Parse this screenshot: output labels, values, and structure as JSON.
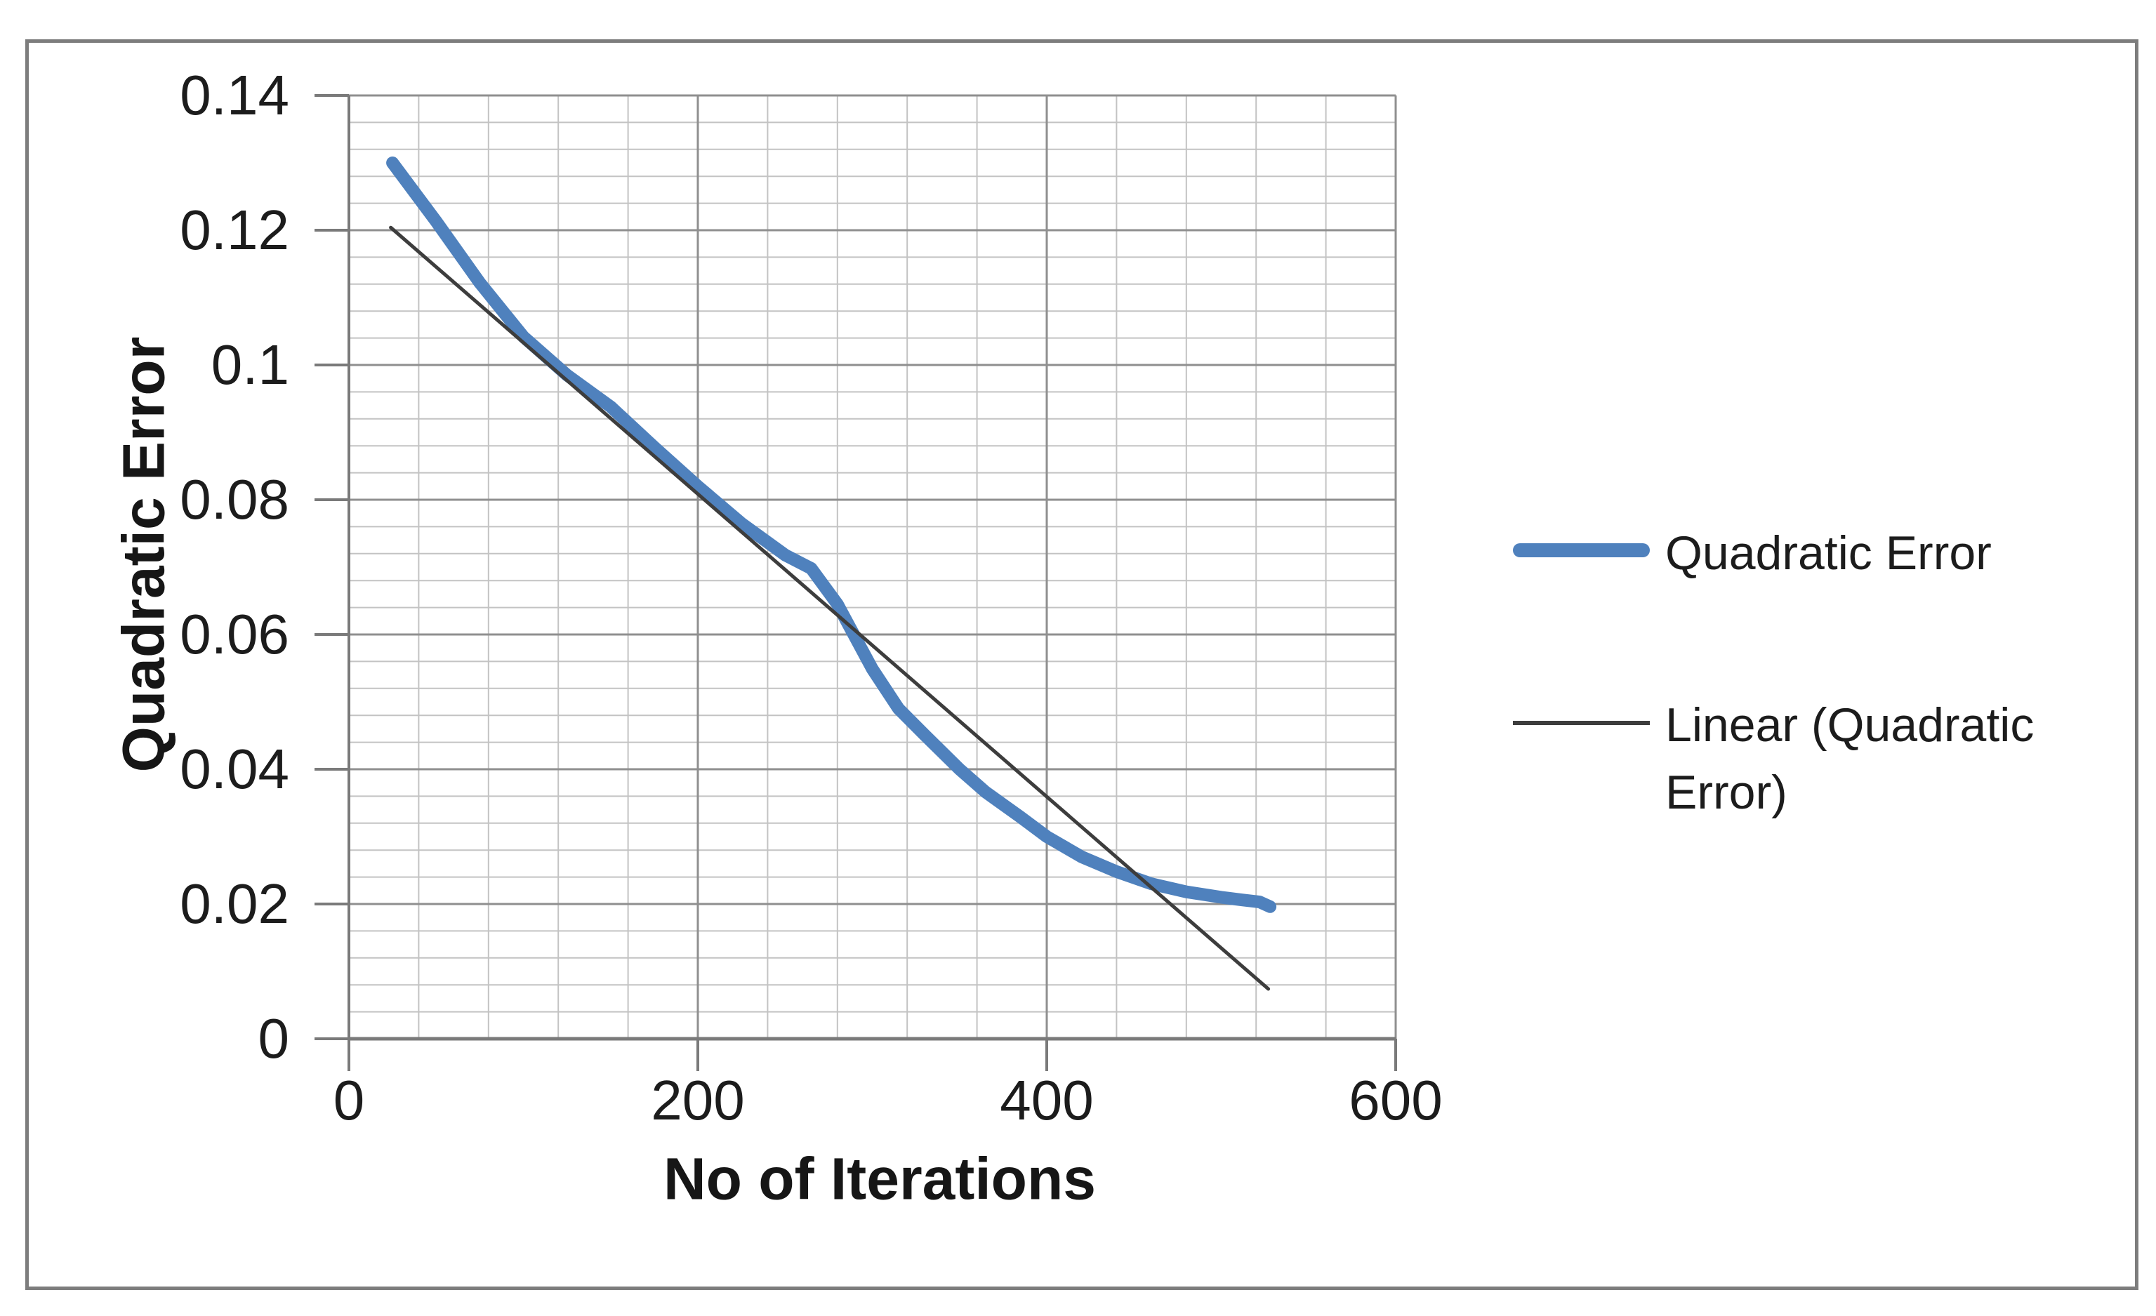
{
  "figure": {
    "kind": "embedded-excel-chart-image",
    "background": "#ffffff",
    "border_color": "#7d7d7d"
  },
  "chart_data": {
    "type": "line",
    "title": "",
    "xlabel": "No of Iterations",
    "ylabel": "Quadratic Error",
    "xlim": [
      0,
      600
    ],
    "ylim": [
      0,
      0.14
    ],
    "x_major_unit": 200,
    "x_minor_unit": 40,
    "y_major_unit": 0.02,
    "y_minor_unit": 0.004,
    "grid": {
      "major": true,
      "minor": true,
      "minor_color": "#c3c3c3",
      "major_color": "#8f8f8f",
      "axis_color": "#7a7a7a"
    },
    "x_ticks": [
      0,
      200,
      400,
      600
    ],
    "x_tick_labels": [
      "0",
      "200",
      "400",
      "600"
    ],
    "y_ticks": [
      0,
      0.02,
      0.04,
      0.06,
      0.08,
      0.1,
      0.12,
      0.14
    ],
    "y_tick_labels": [
      "0",
      "0.02",
      "0.04",
      "0.06",
      "0.08",
      "0.1",
      "0.12",
      "0.14"
    ],
    "legend": {
      "position": "right",
      "entries": [
        {
          "label": "Quadratic Error",
          "color": "#4f81bd",
          "swatch": "thick-line"
        },
        {
          "label": "Linear (Quadratic Error)",
          "color": "#3d3d3d",
          "swatch": "thin-line"
        }
      ]
    },
    "series": [
      {
        "name": "Quadratic Error",
        "color": "#4f81bd",
        "stroke_width": 18,
        "points": [
          [
            25,
            0.13
          ],
          [
            50,
            0.1213
          ],
          [
            75,
            0.1122
          ],
          [
            100,
            0.1042
          ],
          [
            125,
            0.0985
          ],
          [
            150,
            0.0938
          ],
          [
            175,
            0.0878
          ],
          [
            200,
            0.082
          ],
          [
            225,
            0.0765
          ],
          [
            250,
            0.0718
          ],
          [
            265,
            0.0698
          ],
          [
            280,
            0.0645
          ],
          [
            300,
            0.0549
          ],
          [
            315,
            0.049
          ],
          [
            330,
            0.0451
          ],
          [
            350,
            0.04
          ],
          [
            365,
            0.0366
          ],
          [
            385,
            0.0329
          ],
          [
            400,
            0.03
          ],
          [
            420,
            0.027
          ],
          [
            440,
            0.0248
          ],
          [
            460,
            0.023
          ],
          [
            480,
            0.0218
          ],
          [
            500,
            0.021
          ],
          [
            512,
            0.0206
          ],
          [
            522,
            0.0203
          ],
          [
            528,
            0.0196
          ]
        ]
      },
      {
        "name": "Linear (Quadratic Error)",
        "color": "#3d3d3d",
        "stroke_width": 5,
        "points": [
          [
            24,
            0.1204
          ],
          [
            527,
            0.0074
          ]
        ]
      }
    ]
  }
}
